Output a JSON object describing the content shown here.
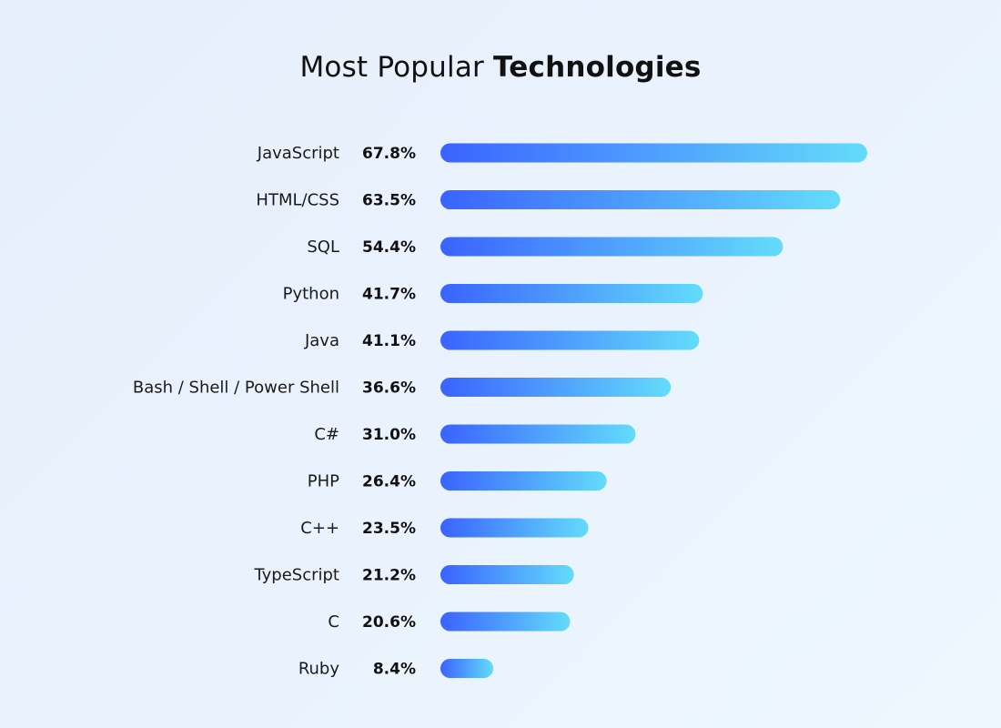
{
  "chart_data": {
    "type": "bar",
    "orientation": "horizontal",
    "title_prefix": "Most Popular",
    "title_emphasis": "Technologies",
    "categories": [
      "JavaScript",
      "HTML/CSS",
      "SQL",
      "Python",
      "Java",
      "Bash / Shell / Power Shell",
      "C#",
      "PHP",
      "C++",
      "TypeScript",
      "C",
      "Ruby"
    ],
    "values": [
      67.8,
      63.5,
      54.4,
      41.7,
      41.1,
      36.6,
      31.0,
      26.4,
      23.5,
      21.2,
      20.6,
      8.4
    ],
    "value_labels": [
      "67.8%",
      "63.5%",
      "54.4%",
      "41.7%",
      "41.1%",
      "36.6%",
      "31.0%",
      "26.4%",
      "23.5%",
      "21.2%",
      "20.6%",
      "8.4%"
    ],
    "unit": "%",
    "xlim": [
      0,
      67.8
    ],
    "grid": false,
    "legend": "none",
    "colors": {
      "bar_start": "#3a63ff",
      "bar_end": "#63dcfb",
      "text": "#111111"
    }
  }
}
